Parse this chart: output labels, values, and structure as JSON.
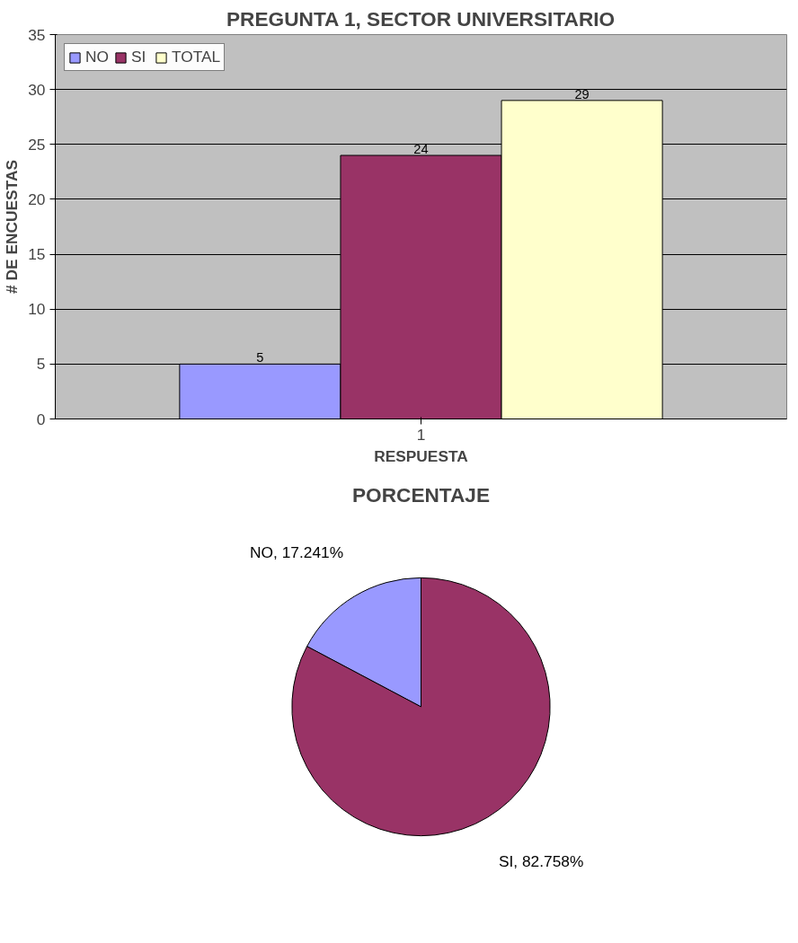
{
  "chart_data": [
    {
      "type": "bar",
      "title": "PREGUNTA 1, SECTOR UNIVERSITARIO",
      "xlabel": "RESPUESTA",
      "ylabel": "# DE ENCUESTAS",
      "categories": [
        "1"
      ],
      "series": [
        {
          "name": "NO",
          "color": "#9999ff",
          "values": [
            5
          ]
        },
        {
          "name": "SI",
          "color": "#993366",
          "values": [
            24
          ]
        },
        {
          "name": "TOTAL",
          "color": "#ffffcc",
          "values": [
            29
          ]
        }
      ],
      "ylim": [
        0,
        35
      ],
      "yticks": [
        0,
        5,
        10,
        15,
        20,
        25,
        30,
        35
      ],
      "grid": "y",
      "legend": "top left",
      "data_labels": true
    },
    {
      "type": "pie",
      "title": "PORCENTAJE",
      "categories": [
        "NO",
        "SI"
      ],
      "values": [
        17.241,
        82.758
      ],
      "colors": [
        "#9999ff",
        "#993366"
      ],
      "value_labels": [
        "17.241%",
        "82.758%"
      ]
    }
  ]
}
